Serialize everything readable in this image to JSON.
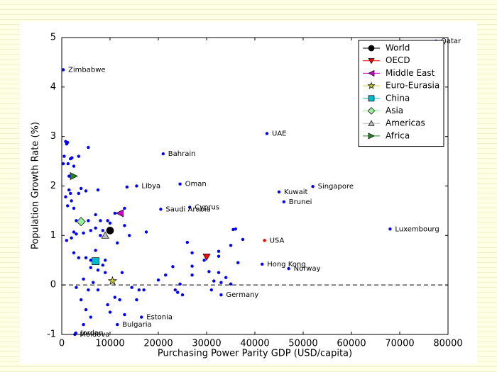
{
  "chart_data": {
    "type": "scatter",
    "xlabel": "Purchasing Power Parity GDP (USD/capita)",
    "ylabel": "Population Growth Rate (%)",
    "xlim": [
      0,
      80000
    ],
    "ylim": [
      -1,
      5
    ],
    "xticks": [
      0,
      10000,
      20000,
      30000,
      40000,
      50000,
      60000,
      70000,
      80000
    ],
    "yticks": [
      -1,
      0,
      1,
      2,
      3,
      4,
      5
    ],
    "reference_line": 0,
    "legend": "upper right",
    "countries": {
      "color": "#0000ff",
      "x": [
        300,
        500,
        800,
        1000,
        1200,
        1300,
        1500,
        1800,
        2100,
        2500,
        3500,
        5500,
        800,
        1200,
        1500,
        1800,
        2000,
        2500,
        3000,
        3500,
        4000,
        5000,
        1000,
        2000,
        2500,
        3000,
        4500,
        5500,
        6000,
        7000,
        7500,
        7000,
        8000,
        8500,
        9500,
        10000,
        11000,
        13000,
        13000,
        14000,
        13500,
        3500,
        5000,
        6000,
        7000,
        7500,
        8500,
        9000,
        4500,
        5500,
        6500,
        7500,
        4000,
        5000,
        6000,
        4500,
        9500,
        10000,
        11000,
        12000,
        13000,
        12500,
        14500,
        15500,
        16000,
        17000,
        17500,
        20000,
        21500,
        23000,
        23500,
        24000,
        25000,
        24500,
        26000,
        27000,
        27000,
        27000,
        29500,
        30500,
        31000,
        31500,
        32500,
        32500,
        32500,
        33000,
        34000,
        35000,
        35500,
        36000,
        36500,
        37500,
        35000,
        2500,
        3000,
        6000,
        8000,
        9000,
        11500
      ],
      "y": [
        2.45,
        2.6,
        2.9,
        2.85,
        2.88,
        2.45,
        2.2,
        2.55,
        2.57,
        2.4,
        2.6,
        2.78,
        1.78,
        1.6,
        1.92,
        1.85,
        1.7,
        1.55,
        1.3,
        1.85,
        1.95,
        1.9,
        0.9,
        0.95,
        1.07,
        1.03,
        1.05,
        1.3,
        1.1,
        1.42,
        1.92,
        1.15,
        1.3,
        1.1,
        1.3,
        1.25,
        1.45,
        1.55,
        1.2,
        1.0,
        1.98,
        0.55,
        0.55,
        0.5,
        0.7,
        0.3,
        0.4,
        0.25,
        0.12,
        -0.1,
        0.05,
        -0.1,
        -0.3,
        -0.5,
        -0.65,
        -0.8,
        -0.4,
        -0.55,
        -0.25,
        -0.3,
        -0.6,
        0.25,
        -0.05,
        -0.3,
        -0.1,
        -0.1,
        1.07,
        0.1,
        0.2,
        0.37,
        -0.1,
        -0.15,
        -0.2,
        0.02,
        0.86,
        0.65,
        0.38,
        0.2,
        0.5,
        0.27,
        -0.1,
        0.08,
        0.58,
        0.68,
        0.25,
        0.05,
        0.15,
        0.8,
        1.12,
        1.13,
        0.45,
        0.92,
        0.02,
        0.65,
        -0.05,
        0.35,
        1.0,
        0.5,
        0.85
      ]
    },
    "annotated_points": [
      {
        "label": "Qatar",
        "x": 77500,
        "y": 4.93
      },
      {
        "label": "Zimbabwe",
        "x": 300,
        "y": 4.35
      },
      {
        "label": "UAE",
        "x": 42500,
        "y": 3.06
      },
      {
        "label": "Bahrain",
        "x": 21000,
        "y": 2.65
      },
      {
        "label": "Libya",
        "x": 15500,
        "y": 2.0
      },
      {
        "label": "Oman",
        "x": 24500,
        "y": 2.04
      },
      {
        "label": "Singapore",
        "x": 52000,
        "y": 1.99
      },
      {
        "label": "Kuwait",
        "x": 45000,
        "y": 1.88
      },
      {
        "label": "Brunei",
        "x": 46000,
        "y": 1.68
      },
      {
        "label": "Cyprus",
        "x": 26500,
        "y": 1.57
      },
      {
        "label": "Saudi Arabia",
        "x": 20500,
        "y": 1.53
      },
      {
        "label": "Luxembourg",
        "x": 68000,
        "y": 1.13
      },
      {
        "label": "USA",
        "x": 42000,
        "y": 0.9,
        "color": "#ff0000"
      },
      {
        "label": "Hong Kong",
        "x": 41500,
        "y": 0.42
      },
      {
        "label": "Norway",
        "x": 47000,
        "y": 0.33
      },
      {
        "label": "Germany",
        "x": 33000,
        "y": -0.2
      },
      {
        "label": "Estonia",
        "x": 16500,
        "y": -0.65
      },
      {
        "label": "Bulgaria",
        "x": 11500,
        "y": -0.8
      },
      {
        "label": "Jordan",
        "x": 2900,
        "y": -0.97
      },
      {
        "label": "Moldova",
        "x": 2700,
        "y": -1.0
      }
    ],
    "series": [
      {
        "name": "World",
        "color": "#000000",
        "marker": "circle",
        "x": [
          10000
        ],
        "y": [
          1.1
        ]
      },
      {
        "name": "OECD",
        "color": "#ff0000",
        "marker": "triangle-down",
        "x": [
          30000
        ],
        "y": [
          0.57
        ]
      },
      {
        "name": "Middle East",
        "color": "#cc00cc",
        "marker": "triangle-left",
        "x": [
          12000
        ],
        "y": [
          1.45
        ]
      },
      {
        "name": "Euro-Eurasia",
        "color": "#cccc33",
        "marker": "star",
        "x": [
          10500
        ],
        "y": [
          0.08
        ]
      },
      {
        "name": "China",
        "color": "#00bbcc",
        "marker": "square",
        "x": [
          7000
        ],
        "y": [
          0.48
        ]
      },
      {
        "name": "Asia",
        "color": "#99ee99",
        "marker": "diamond",
        "x": [
          4000
        ],
        "y": [
          1.28
        ]
      },
      {
        "name": "Americas",
        "color": "#bbbbbb",
        "marker": "triangle-up",
        "x": [
          9000
        ],
        "y": [
          1.0
        ]
      },
      {
        "name": "Africa",
        "color": "#228822",
        "marker": "triangle-right",
        "x": [
          2500
        ],
        "y": [
          2.2
        ]
      }
    ]
  }
}
